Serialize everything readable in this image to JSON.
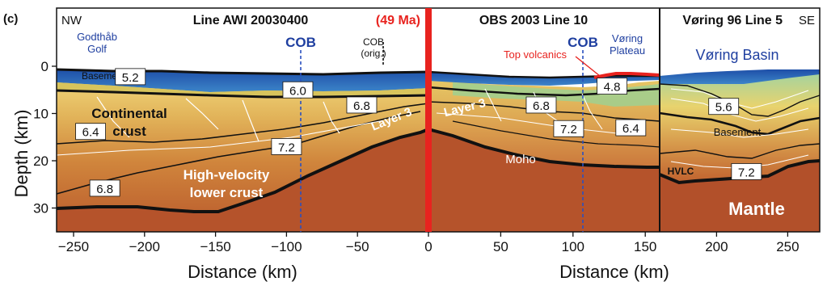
{
  "panel_label": "(c)",
  "left": {
    "direction": "NW",
    "title": "Line AWI 20030400",
    "place": [
      "Godthåb",
      "Golf"
    ],
    "cob_label": "COB",
    "cob_orig_label": [
      "COB",
      "(orig.)"
    ],
    "labels": {
      "basement": "Basement",
      "continental_crust": [
        "Continental",
        "crust"
      ],
      "hvlc": [
        "High-velocity",
        "lower crust"
      ],
      "layer3": "Layer 3"
    },
    "contours": [
      {
        "value": "5.2",
        "x": -210,
        "depth": 2.2
      },
      {
        "value": "6.0",
        "x": -92,
        "depth": 5.0
      },
      {
        "value": "6.8",
        "x": -47,
        "depth": 8.2
      },
      {
        "value": "6.4",
        "x": -238,
        "depth": 13.8
      },
      {
        "value": "7.2",
        "x": -100,
        "depth": 17.0
      },
      {
        "value": "6.8",
        "x": -228,
        "depth": 25.8
      }
    ],
    "x_axis": {
      "label": "Distance (km)",
      "range": [
        -260,
        0
      ],
      "ticks": [
        -250,
        -200,
        -150,
        -100,
        -50,
        0
      ]
    }
  },
  "center_age": "(49 Ma)",
  "middle": {
    "title": "OBS 2003 Line 10",
    "cob_label": "COB",
    "place": [
      "Vøring",
      "Plateau"
    ],
    "top_volcanics": "Top volcanics",
    "labels": {
      "layer3": "Layer 3",
      "moho": "Moho"
    },
    "contours": [
      {
        "value": "4.8",
        "x": 127,
        "depth": 4.2
      },
      {
        "value": "6.8",
        "x": 78,
        "depth": 8.2
      },
      {
        "value": "7.2",
        "x": 97,
        "depth": 13.2
      },
      {
        "value": "6.4",
        "x": 140,
        "depth": 13.0
      }
    ],
    "x_axis": {
      "label": "Distance (km)",
      "range": [
        0,
        160
      ],
      "ticks": [
        0,
        50,
        100,
        150
      ]
    }
  },
  "right": {
    "title": "Vøring 96 Line 5",
    "direction": "SE",
    "place": "Vøring Basin",
    "labels": {
      "basement": "Basement",
      "hvlc": "HVLC",
      "mantle": "Mantle"
    },
    "contours": [
      {
        "value": "5.6",
        "x": 205,
        "depth": 8.5
      },
      {
        "value": "7.2",
        "x": 221,
        "depth": 22.3
      }
    ],
    "x_axis": {
      "ticks": [
        200,
        250
      ]
    }
  },
  "y_axis": {
    "label": "Depth (km)",
    "range": [
      0,
      35
    ],
    "ticks": [
      0,
      10,
      20,
      30
    ]
  },
  "colors": {
    "water": "#2a64b8",
    "sediment_top": "#7fc0a8",
    "sediment": "#e8d070",
    "crust": "#d89a48",
    "lower_crust": "#c46a2e",
    "mantle": "#b2502a",
    "axis_red": "#e8231f",
    "label_blue": "#1f3fa0"
  }
}
